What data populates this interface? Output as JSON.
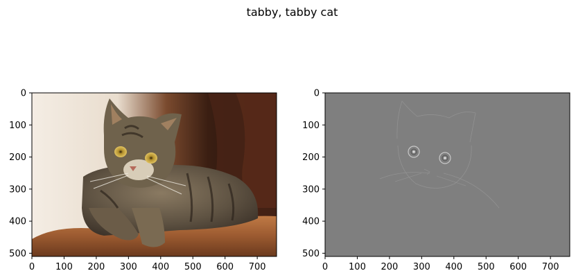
{
  "title": "tabby, tabby cat",
  "chart_data": [
    {
      "type": "image",
      "title": "",
      "content": "color photograph of a tabby cat lying on an orange cushion",
      "xlim": [
        0,
        760
      ],
      "ylim": [
        510,
        0
      ],
      "xticks": [
        0,
        100,
        200,
        300,
        400,
        500,
        600,
        700
      ],
      "yticks": [
        0,
        100,
        200,
        300,
        400,
        500
      ]
    },
    {
      "type": "image",
      "title": "",
      "content": "grayscale gradient / saliency map of the same cat, mostly flat gray with faint edges",
      "xlim": [
        0,
        760
      ],
      "ylim": [
        510,
        0
      ],
      "xticks": [
        0,
        100,
        200,
        300,
        400,
        500,
        600,
        700
      ],
      "yticks": [
        0,
        100,
        200,
        300,
        400,
        500
      ]
    }
  ]
}
